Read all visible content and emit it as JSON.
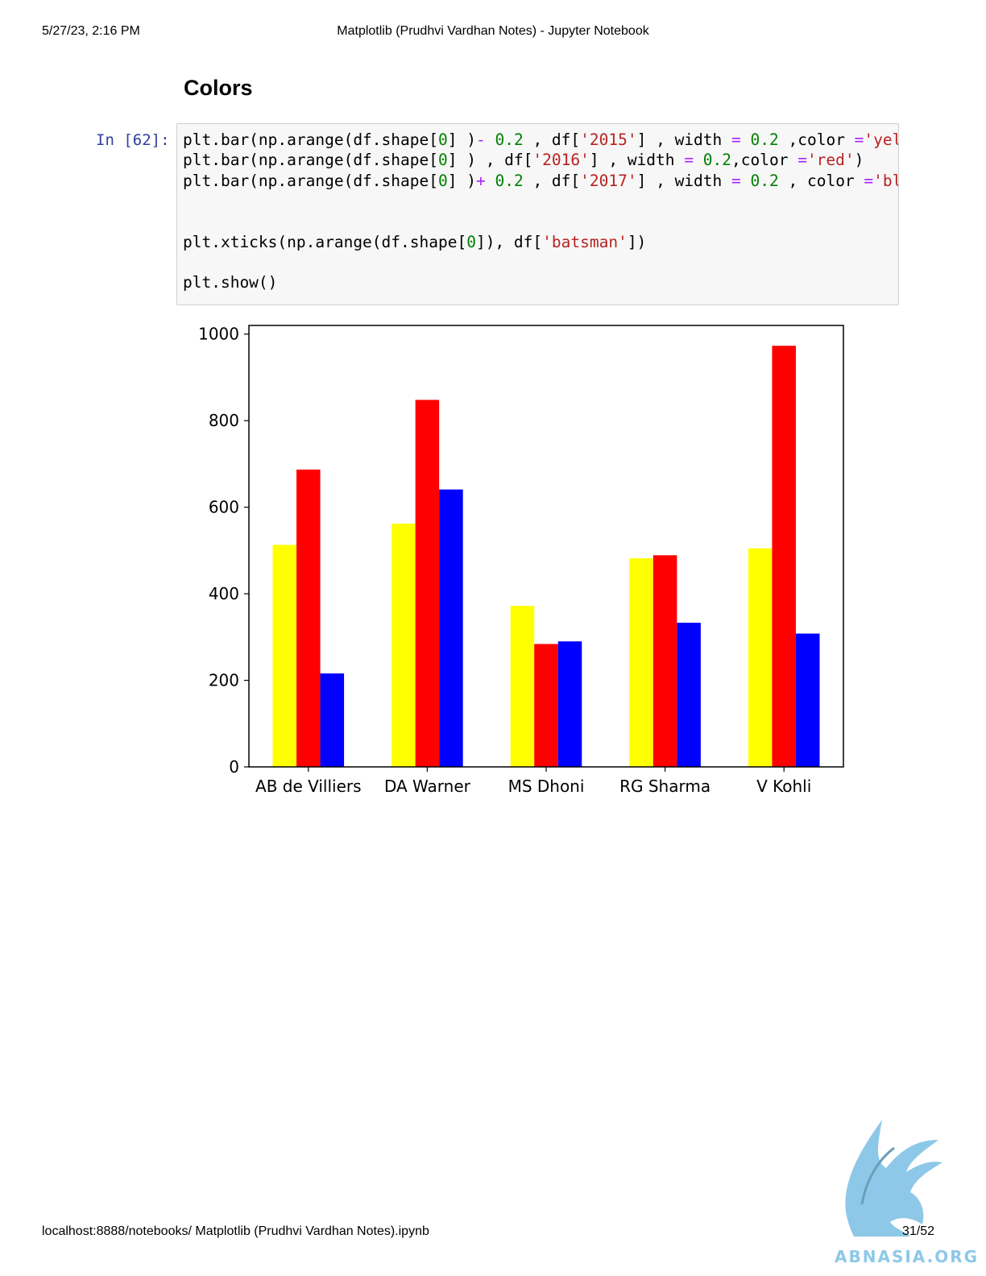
{
  "header": {
    "datetime": "5/27/23, 2:16 PM",
    "title": "Matplotlib (Prudhvi Vardhan Notes) - Jupyter Notebook"
  },
  "section": {
    "heading": "Colors"
  },
  "cell": {
    "prompt": "In [62]:",
    "lines": [
      [
        {
          "t": "plt.bar(np.arange(df.shape[",
          "c": ""
        },
        {
          "t": "0",
          "c": "num"
        },
        {
          "t": "] )",
          "c": ""
        },
        {
          "t": "-",
          "c": "op"
        },
        {
          "t": " ",
          "c": ""
        },
        {
          "t": "0.2",
          "c": "num"
        },
        {
          "t": " , df[",
          "c": ""
        },
        {
          "t": "'2015'",
          "c": "str"
        },
        {
          "t": "] , width ",
          "c": ""
        },
        {
          "t": "=",
          "c": "op"
        },
        {
          "t": " ",
          "c": ""
        },
        {
          "t": "0.2",
          "c": "num"
        },
        {
          "t": " ,color ",
          "c": ""
        },
        {
          "t": "=",
          "c": "op"
        },
        {
          "t": "'yellow')",
          "c": "str"
        }
      ],
      [
        {
          "t": "plt.bar(np.arange(df.shape[",
          "c": ""
        },
        {
          "t": "0",
          "c": "num"
        },
        {
          "t": "] ) , df[",
          "c": ""
        },
        {
          "t": "'2016'",
          "c": "str"
        },
        {
          "t": "] , width ",
          "c": ""
        },
        {
          "t": "=",
          "c": "op"
        },
        {
          "t": " ",
          "c": ""
        },
        {
          "t": "0.2",
          "c": "num"
        },
        {
          "t": ",color ",
          "c": ""
        },
        {
          "t": "=",
          "c": "op"
        },
        {
          "t": "'red'",
          "c": "str"
        },
        {
          "t": ")",
          "c": ""
        }
      ],
      [
        {
          "t": "plt.bar(np.arange(df.shape[",
          "c": ""
        },
        {
          "t": "0",
          "c": "num"
        },
        {
          "t": "] )",
          "c": ""
        },
        {
          "t": "+",
          "c": "op"
        },
        {
          "t": " ",
          "c": ""
        },
        {
          "t": "0.2",
          "c": "num"
        },
        {
          "t": " , df[",
          "c": ""
        },
        {
          "t": "'2017'",
          "c": "str"
        },
        {
          "t": "] , width ",
          "c": ""
        },
        {
          "t": "=",
          "c": "op"
        },
        {
          "t": " ",
          "c": ""
        },
        {
          "t": "0.2",
          "c": "num"
        },
        {
          "t": " , color ",
          "c": ""
        },
        {
          "t": "=",
          "c": "op"
        },
        {
          "t": "'blue')",
          "c": "str"
        }
      ],
      [],
      [],
      [
        {
          "t": "plt.xticks(np.arange(df.shape[",
          "c": ""
        },
        {
          "t": "0",
          "c": "num"
        },
        {
          "t": "]), df[",
          "c": ""
        },
        {
          "t": "'batsman'",
          "c": "str"
        },
        {
          "t": "])",
          "c": ""
        }
      ],
      [],
      [
        {
          "t": "plt.show()",
          "c": ""
        }
      ]
    ]
  },
  "chart_data": {
    "type": "bar",
    "categories": [
      "AB de Villiers",
      "DA Warner",
      "MS Dhoni",
      "RG Sharma",
      "V Kohli"
    ],
    "series": [
      {
        "color": "#ffff00",
        "values": [
          513,
          562,
          372,
          482,
          505
        ]
      },
      {
        "color": "#ff0000",
        "values": [
          687,
          848,
          284,
          489,
          973
        ]
      },
      {
        "color": "#0000ff",
        "values": [
          216,
          641,
          290,
          333,
          308
        ]
      }
    ],
    "ylim": [
      0,
      1020
    ],
    "yticks": [
      0,
      200,
      400,
      600,
      800,
      1000
    ],
    "xlim": [
      -0.5,
      4.5
    ],
    "bar_width": 0.2,
    "grid": false
  },
  "footer": {
    "url": "localhost:8888/notebooks/ Matplotlib (Prudhvi Vardhan Notes).ipynb",
    "page": "31/52"
  },
  "watermark": {
    "text": "ABNASIA.ORG",
    "color": "#8ec8e8"
  }
}
